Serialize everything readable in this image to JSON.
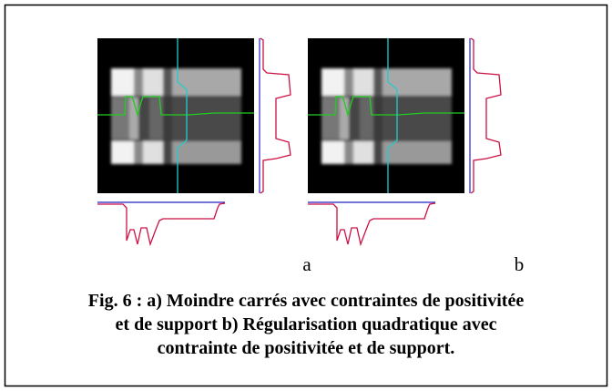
{
  "figure": {
    "panel_labels": [
      "a",
      "b"
    ],
    "caption_lines": [
      "Fig. 6 : a) Moindre carrés avec contraintes de positivitée",
      "et de support b) Régularisation quadratique avec",
      "contrainte de positivitée et de support."
    ]
  }
}
